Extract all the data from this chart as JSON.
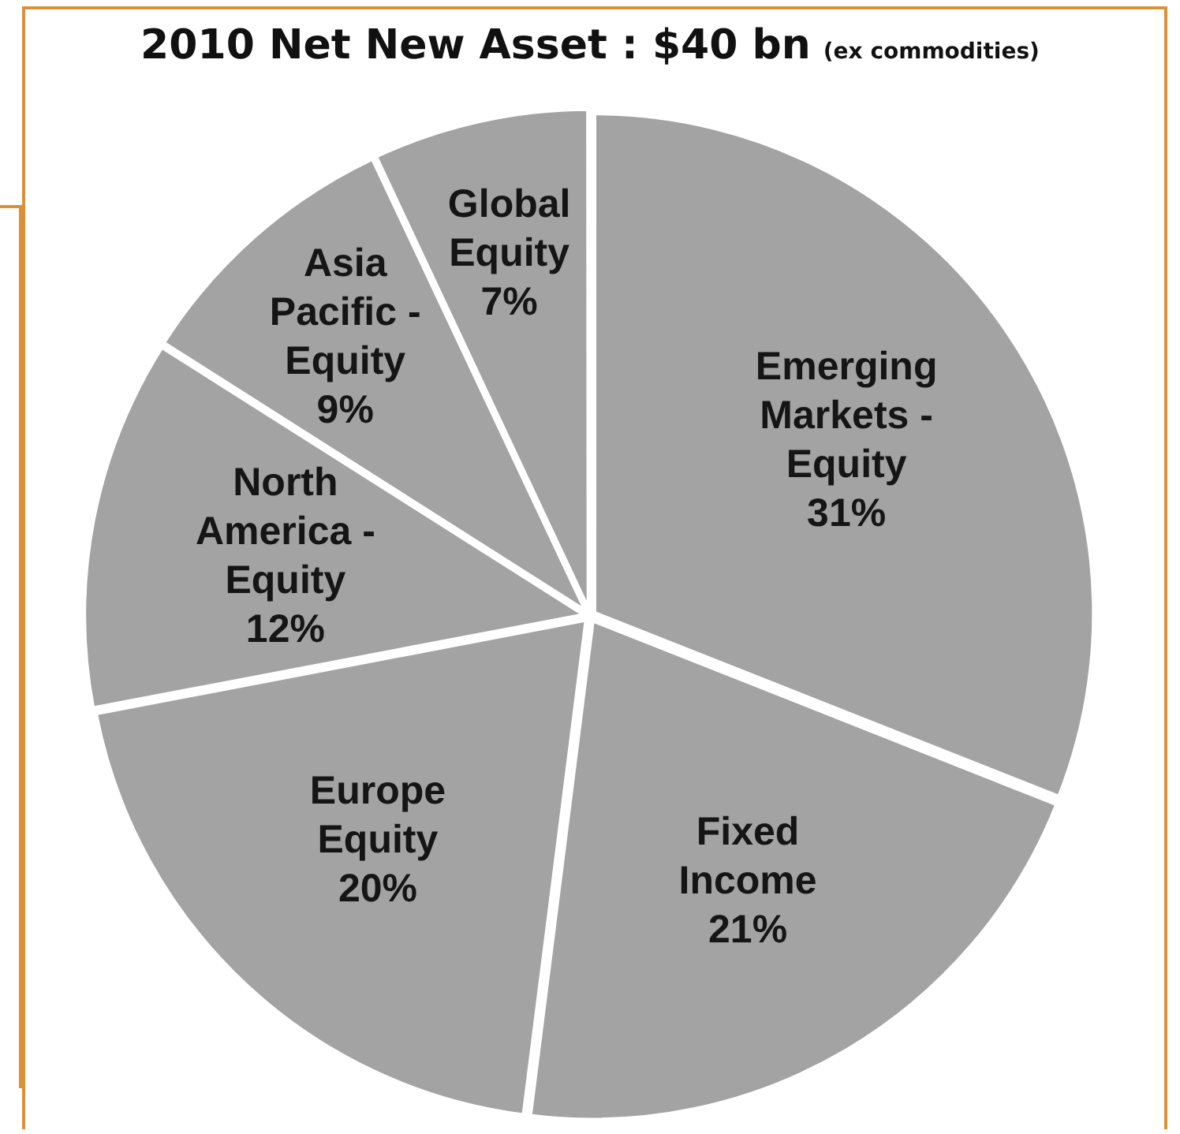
{
  "chart_data": {
    "type": "pie",
    "title": "2010 Net New Asset : $40 bn",
    "subtitle": "(ex commodities)",
    "categories": [
      "Emerging Markets - Equity",
      "Fixed Income",
      "Europe Equity",
      "North America - Equity",
      "Asia Pacific - Equity",
      "Global Equity"
    ],
    "values": [
      31,
      21,
      20,
      12,
      9,
      7
    ],
    "colors": [
      "#a3a3a3",
      "#a3a3a3",
      "#a3a3a3",
      "#a3a3a3",
      "#a3a3a3",
      "#a3a3a3"
    ],
    "value_labels": [
      "31%",
      "21%",
      "20%",
      "12%",
      "9%",
      "7%"
    ],
    "legend": false
  }
}
